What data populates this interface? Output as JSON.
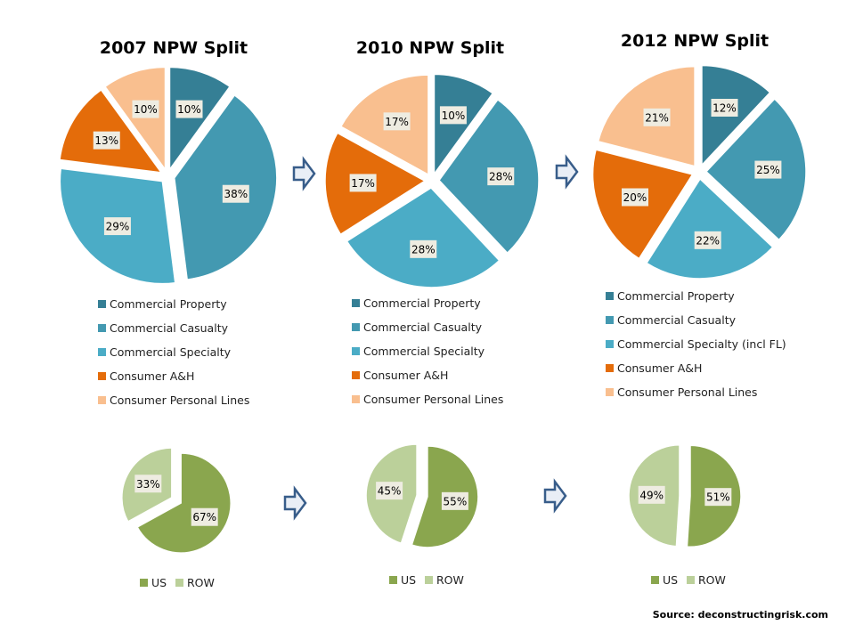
{
  "colors": {
    "Commercial Property": "#357F95",
    "Commercial Casualty": "#4399B1",
    "Commercial Specialty": "#4BACC6",
    "Commercial Specialty (incl FL)": "#4BACC6",
    "Consumer A&H": "#E46C0A",
    "Consumer Personal Lines": "#F9BF8F",
    "US": "#8AA64E",
    "ROW": "#BBD09A",
    "label_bg": "#EEECE1",
    "arrow_stroke": "#385D8A",
    "arrow_fill": "#E9EEF6"
  },
  "source": "Source: deconstructingrisk.com",
  "chart_data": [
    {
      "type": "pie",
      "title": "2007 NPW Split",
      "categories": [
        "Commercial Property",
        "Commercial Casualty",
        "Commercial Specialty",
        "Consumer A&H",
        "Consumer Personal Lines"
      ],
      "values": [
        10,
        38,
        29,
        13,
        10
      ],
      "labels": [
        "10%",
        "38%",
        "29%",
        "13%",
        "10%"
      ],
      "legend": [
        "Commercial Property",
        "Commercial Casualty",
        "Commercial Specialty",
        "Consumer A&H",
        "Consumer Personal Lines"
      ],
      "legend_placement": "bottom"
    },
    {
      "type": "pie",
      "title": "2010 NPW Split",
      "categories": [
        "Commercial Property",
        "Commercial Casualty",
        "Commercial Specialty",
        "Consumer A&H",
        "Consumer Personal Lines"
      ],
      "values": [
        10,
        28,
        28,
        17,
        17
      ],
      "labels": [
        "10%",
        "28%",
        "28%",
        "17%",
        "17%"
      ],
      "legend": [
        "Commercial Property",
        "Commercial Casualty",
        "Commercial Specialty",
        "Consumer A&H",
        "Consumer Personal Lines"
      ],
      "legend_placement": "bottom"
    },
    {
      "type": "pie",
      "title": "2012 NPW Split",
      "categories": [
        "Commercial Property",
        "Commercial Casualty",
        "Commercial Specialty (incl FL)",
        "Consumer A&H",
        "Consumer Personal Lines"
      ],
      "values": [
        12,
        25,
        22,
        20,
        21
      ],
      "labels": [
        "12%",
        "25%",
        "22%",
        "20%",
        "21%"
      ],
      "legend": [
        "Commercial Property",
        "Commercial Casualty",
        "Commercial Specialty (incl FL)",
        "Consumer A&H",
        "Consumer Personal Lines"
      ],
      "legend_placement": "bottom"
    },
    {
      "type": "pie",
      "title": "",
      "categories": [
        "US",
        "ROW"
      ],
      "values": [
        67,
        33
      ],
      "labels": [
        "67%",
        "33%"
      ],
      "legend": [
        "US",
        "ROW"
      ],
      "legend_placement": "bottom"
    },
    {
      "type": "pie",
      "title": "",
      "categories": [
        "US",
        "ROW"
      ],
      "values": [
        55,
        45
      ],
      "labels": [
        "55%",
        "45%"
      ],
      "legend": [
        "US",
        "ROW"
      ],
      "legend_placement": "bottom"
    },
    {
      "type": "pie",
      "title": "",
      "categories": [
        "US",
        "ROW"
      ],
      "values": [
        51,
        49
      ],
      "labels": [
        "51%",
        "49%"
      ],
      "legend": [
        "US",
        "ROW"
      ],
      "legend_placement": "bottom"
    }
  ]
}
